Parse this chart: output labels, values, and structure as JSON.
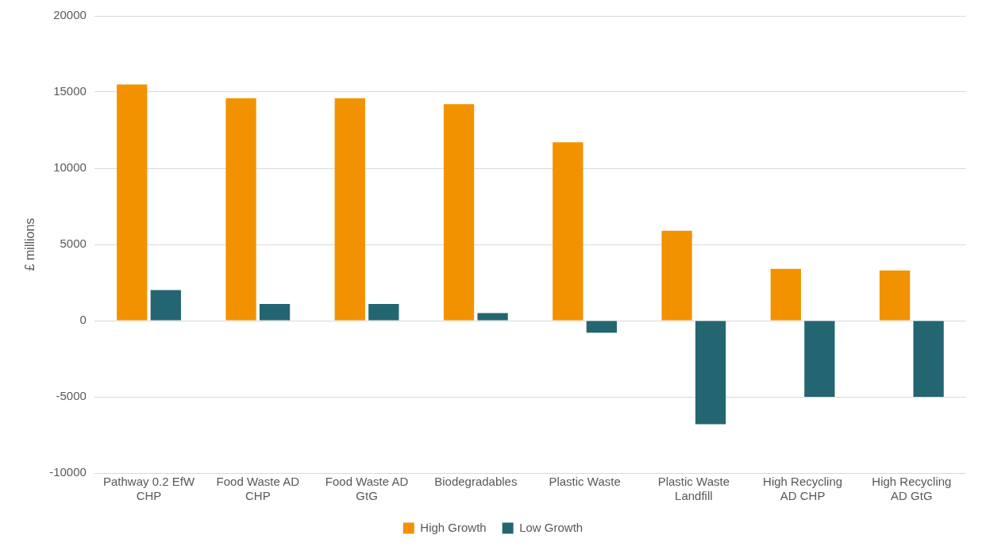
{
  "chart_data": {
    "type": "bar",
    "ylabel": "£ millions",
    "categories": [
      "Pathway 0.2 EfW CHP",
      "Food Waste AD CHP",
      "Food Waste AD GtG",
      "Biodegradables",
      "Plastic Waste",
      "Plastic Waste Landfill",
      "High Recycling AD CHP",
      "High Recycling AD GtG"
    ],
    "series": [
      {
        "name": "High Growth",
        "color": "#f39200",
        "values": [
          15500,
          14600,
          14600,
          14200,
          11700,
          5900,
          3400,
          3300
        ]
      },
      {
        "name": "Low Growth",
        "color": "#236671",
        "values": [
          2000,
          1100,
          1100,
          500,
          -800,
          -6800,
          -5000,
          -5000
        ]
      }
    ],
    "ylim": [
      -10000,
      20000
    ],
    "yticks": [
      -10000,
      -5000,
      0,
      5000,
      10000,
      15000,
      20000
    ],
    "grid": "y",
    "legend": "bottom"
  }
}
